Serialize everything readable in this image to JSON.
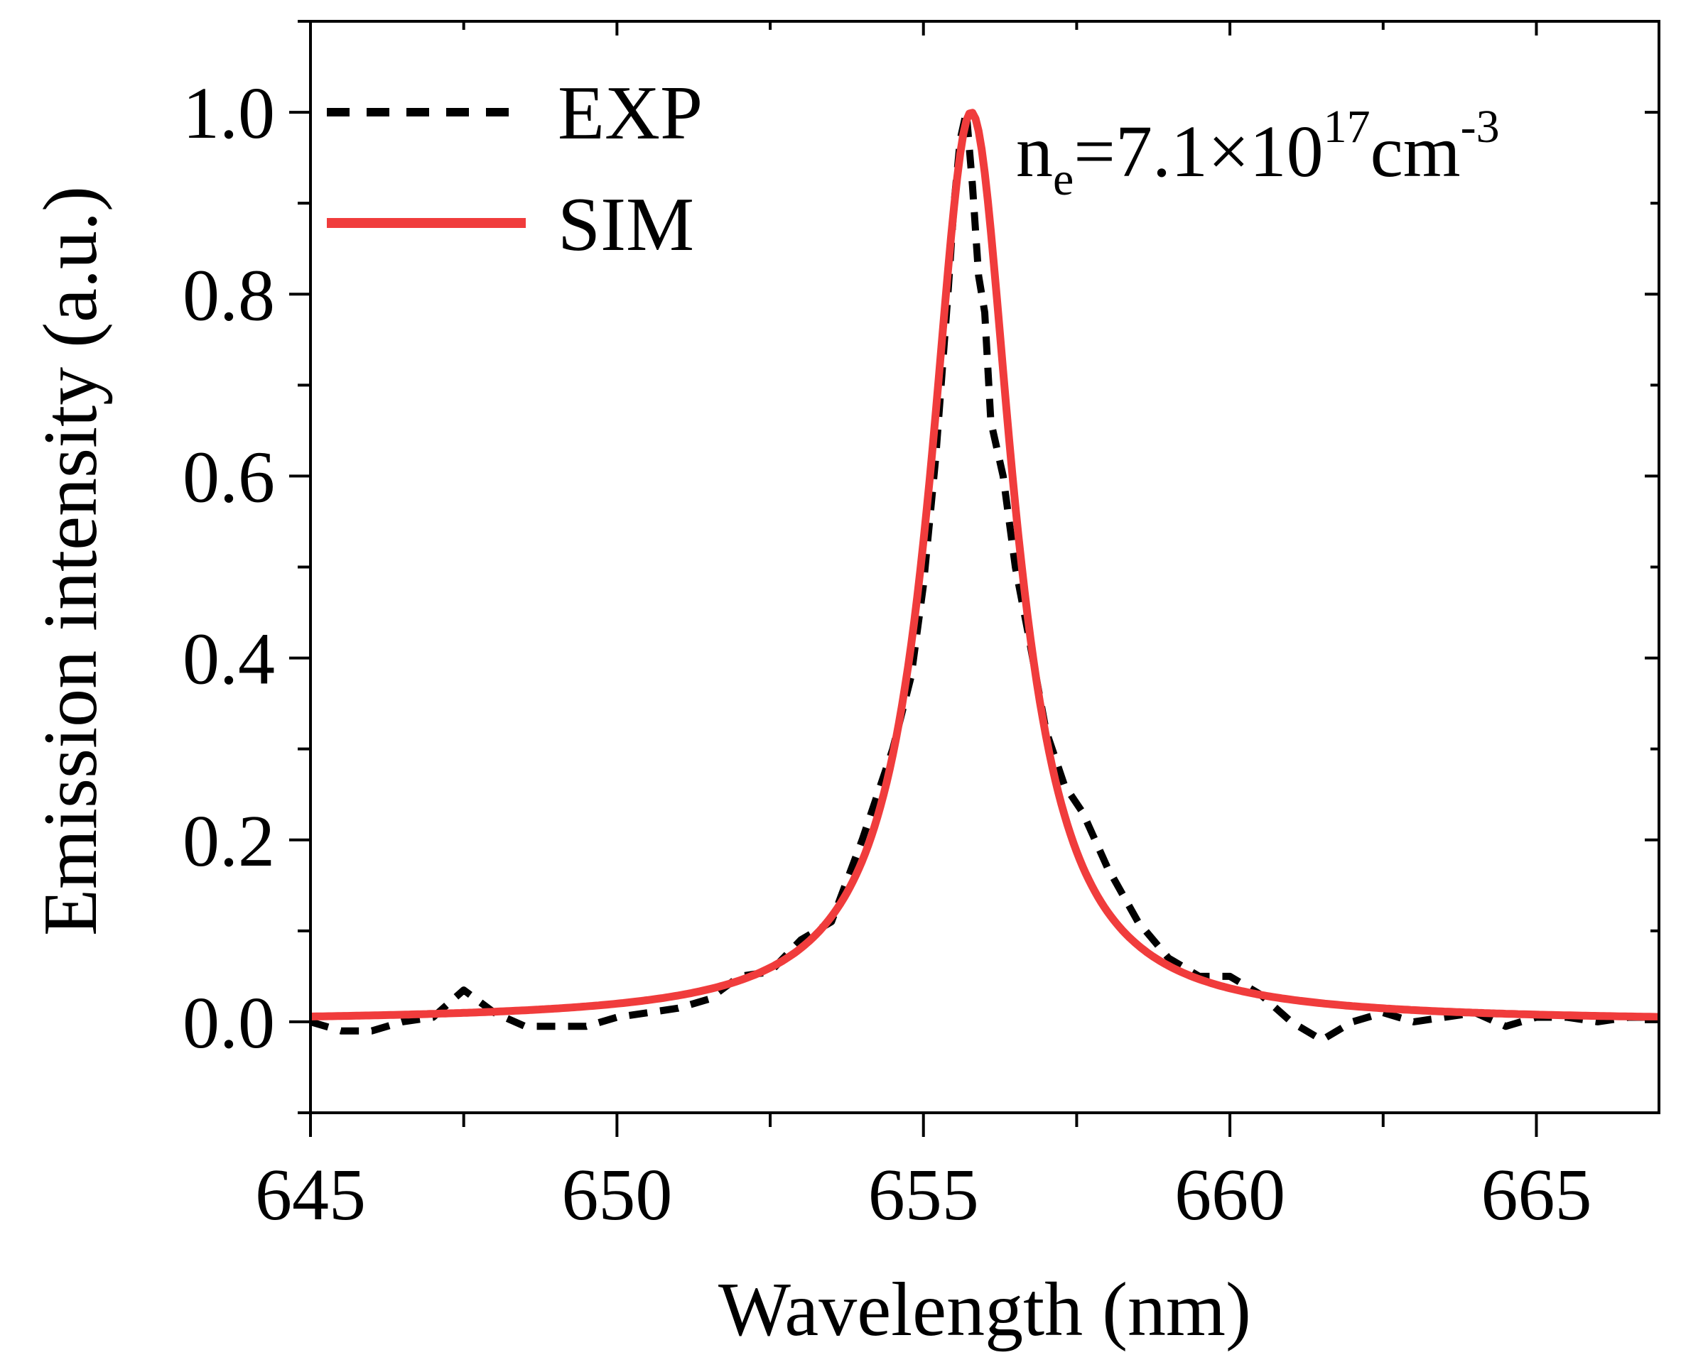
{
  "chart_data": {
    "type": "line",
    "xlabel": "Wavelength (nm)",
    "ylabel": "Emission intensity (a.u.)",
    "xlim": [
      645,
      667
    ],
    "ylim": [
      -0.1,
      1.1
    ],
    "x_ticks": [
      645,
      650,
      655,
      660,
      665
    ],
    "x_tick_labels": [
      "645",
      "650",
      "655",
      "660",
      "665"
    ],
    "y_ticks": [
      0.0,
      0.2,
      0.4,
      0.6,
      0.8,
      1.0
    ],
    "y_tick_labels": [
      "0.0",
      "0.2",
      "0.4",
      "0.6",
      "0.8",
      "1.0"
    ],
    "legend_position": "top-left",
    "annotation": {
      "base": "n",
      "sub": "e",
      "middle": "=7.1×10",
      "sup1": "17",
      "unit": "cm",
      "sup2": "-3"
    },
    "series": [
      {
        "name": "EXP",
        "style": "dashed",
        "color": "#000000",
        "x": [
          645.0,
          645.5,
          646.0,
          646.5,
          647.0,
          647.5,
          648.0,
          648.5,
          649.0,
          649.5,
          650.0,
          650.5,
          651.0,
          651.5,
          652.0,
          652.5,
          653.0,
          653.5,
          654.0,
          654.5,
          654.8,
          655.0,
          655.2,
          655.4,
          655.5,
          655.6,
          655.7,
          655.8,
          655.9,
          656.0,
          656.1,
          656.3,
          656.5,
          656.7,
          657.0,
          657.3,
          657.6,
          658.0,
          658.5,
          659.0,
          659.5,
          660.0,
          660.5,
          661.0,
          661.5,
          662.0,
          662.5,
          663.0,
          663.5,
          664.0,
          664.5,
          665.0,
          665.5,
          666.0,
          666.5,
          667.0
        ],
        "y": [
          0.0,
          -0.01,
          -0.01,
          0.0,
          0.005,
          0.035,
          0.01,
          -0.005,
          -0.005,
          -0.005,
          0.005,
          0.01,
          0.015,
          0.025,
          0.05,
          0.055,
          0.09,
          0.11,
          0.2,
          0.3,
          0.38,
          0.48,
          0.62,
          0.8,
          0.9,
          0.97,
          1.0,
          0.92,
          0.82,
          0.78,
          0.66,
          0.6,
          0.5,
          0.43,
          0.32,
          0.26,
          0.23,
          0.17,
          0.11,
          0.07,
          0.05,
          0.05,
          0.03,
          0.0,
          -0.02,
          0.0,
          0.01,
          0.0,
          0.005,
          0.01,
          -0.005,
          0.005,
          0.005,
          0.0,
          0.005,
          0.005
        ]
      },
      {
        "name": "SIM",
        "style": "solid",
        "color": "#f03c3c",
        "profile": "lorentzian",
        "center": 655.78,
        "fwhm": 1.65,
        "peak": 1.0
      }
    ]
  }
}
